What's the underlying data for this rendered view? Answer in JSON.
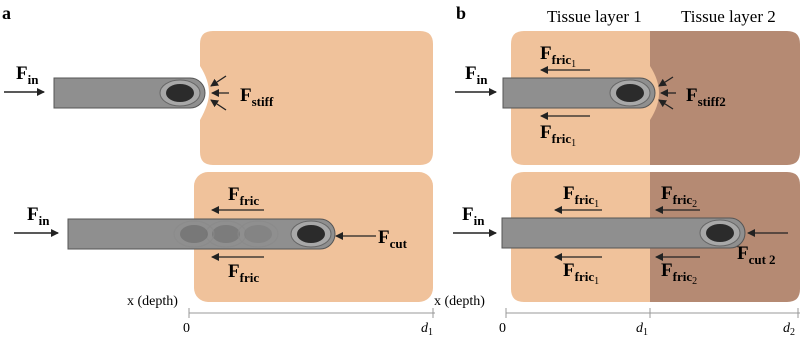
{
  "colors": {
    "tissue1": "#f0c29b",
    "tissue2": "#b58a73",
    "needle": "#8f8f8f",
    "needle_stroke": "#555555",
    "tip_ring": "#a8a8a8",
    "tip_core": "#2b2b2b",
    "arrow": "#222222",
    "axis": "#999999"
  },
  "icons": {
    "needle": "needle-shaft-icon",
    "tip": "needle-tip-icon",
    "arrow": "force-arrow-icon"
  },
  "panel_a": {
    "letter": "a",
    "top": {
      "f_in": {
        "main": "F",
        "sub": "in"
      },
      "f_stiff": {
        "main": "F",
        "sub": "stiff"
      }
    },
    "bottom": {
      "f_in": {
        "main": "F",
        "sub": "in"
      },
      "f_fric_upper": {
        "main": "F",
        "sub": "fric"
      },
      "f_fric_lower": {
        "main": "F",
        "sub": "fric"
      },
      "f_cut": {
        "main": "F",
        "sub": "cut"
      }
    },
    "axis": {
      "label": "x (depth)",
      "tick0": "0",
      "tick_d1_main": "d",
      "tick_d1_sub": "1"
    }
  },
  "panel_b": {
    "letter": "b",
    "tissue_layer_1": "Tissue layer 1",
    "tissue_layer_2": "Tissue layer 2",
    "top": {
      "f_in": {
        "main": "F",
        "sub": "in"
      },
      "f_fric_upper": {
        "main": "F",
        "sub": "fric",
        "sub2": "1"
      },
      "f_fric_lower": {
        "main": "F",
        "sub": "fric",
        "sub2": "1"
      },
      "f_stiff": {
        "main": "F",
        "sub": "stiff",
        "sub2": "2"
      }
    },
    "bottom": {
      "f_in": {
        "main": "F",
        "sub": "in"
      },
      "f_fric1_upper": {
        "main": "F",
        "sub": "fric",
        "sub2": "1"
      },
      "f_fric1_lower": {
        "main": "F",
        "sub": "fric",
        "sub2": "1"
      },
      "f_fric2_upper": {
        "main": "F",
        "sub": "fric",
        "sub2": "2"
      },
      "f_fric2_lower": {
        "main": "F",
        "sub": "fric",
        "sub2": "2"
      },
      "f_cut": {
        "main": "F",
        "sub": "cut",
        "sub2": "2"
      }
    },
    "axis": {
      "label": "x (depth)",
      "tick0": "0",
      "tick_d1_main": "d",
      "tick_d1_sub": "1",
      "tick_d2_main": "d",
      "tick_d2_sub": "2"
    }
  }
}
